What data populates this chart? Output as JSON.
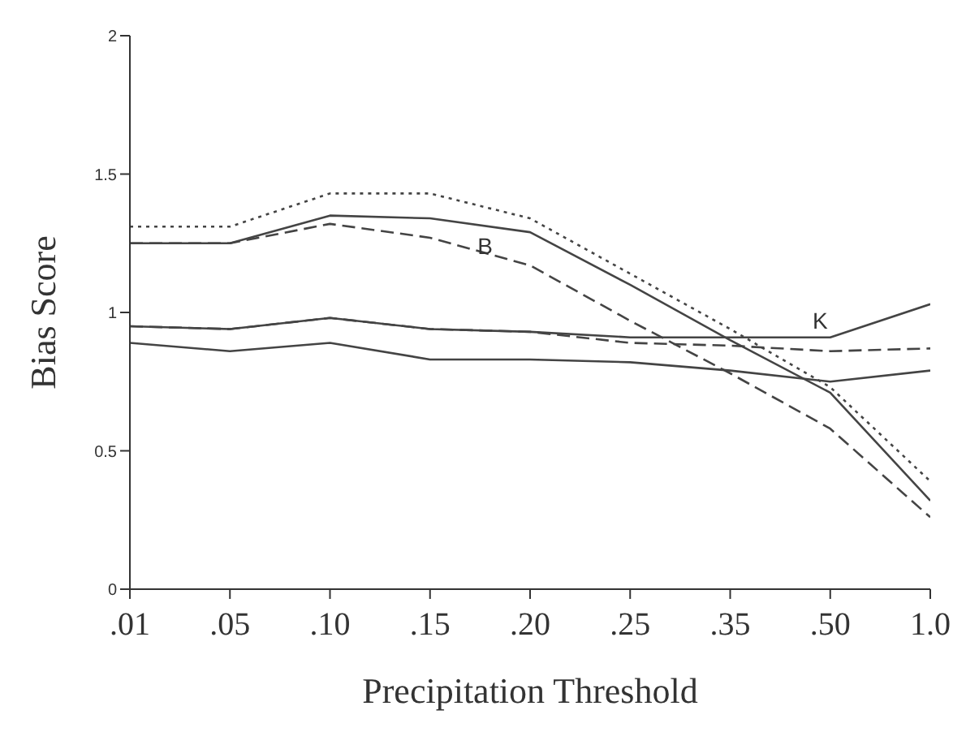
{
  "chart_data": {
    "type": "line",
    "xlabel": "Precipitation Threshold",
    "ylabel": "Bias Score",
    "categories": [
      ".01",
      ".05",
      ".10",
      ".15",
      ".20",
      ".25",
      ".35",
      ".50",
      "1.0"
    ],
    "series": [
      {
        "color": "#444444",
        "line_style": "dotted",
        "values": [
          1.31,
          1.31,
          1.43,
          1.43,
          1.34,
          1.14,
          0.94,
          0.73,
          0.39
        ]
      },
      {
        "color": "#444444",
        "line_style": "solid",
        "values": [
          1.25,
          1.25,
          1.35,
          1.34,
          1.29,
          1.1,
          0.9,
          0.71,
          0.32
        ]
      },
      {
        "color": "#444444",
        "line_style": "dashed",
        "values": [
          1.25,
          1.25,
          1.32,
          1.27,
          1.17,
          0.97,
          0.78,
          0.58,
          0.26
        ]
      },
      {
        "color": "#444444",
        "line_style": "solid",
        "values": [
          0.95,
          0.94,
          0.98,
          0.94,
          0.93,
          0.91,
          0.91,
          0.91,
          1.03
        ]
      },
      {
        "color": "#444444",
        "line_style": "dashed",
        "values": [
          0.95,
          0.94,
          0.98,
          0.94,
          0.93,
          0.89,
          0.88,
          0.86,
          0.87
        ]
      },
      {
        "color": "#444444",
        "line_style": "solid",
        "values": [
          0.89,
          0.86,
          0.89,
          0.83,
          0.83,
          0.82,
          0.79,
          0.75,
          0.79
        ]
      }
    ],
    "ylim": [
      0,
      2
    ],
    "yticks": [
      0,
      0.5,
      1,
      1.5,
      2
    ],
    "grid": false,
    "legend": false,
    "marker": "none",
    "annotations": [
      "B",
      "K"
    ]
  }
}
